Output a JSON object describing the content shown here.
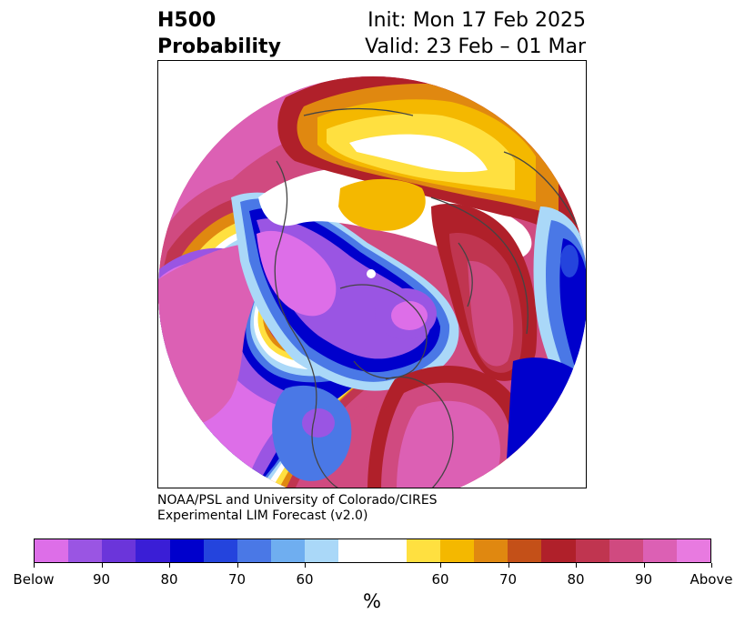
{
  "header": {
    "title_line1": "H500",
    "title_line2": "Probability",
    "init": "Init: Mon 17 Feb 2025",
    "valid": "Valid: 23 Feb – 01 Mar"
  },
  "credit": {
    "line1": "NOAA/PSL and University of Colorado/CIRES",
    "line2": "Experimental LIM Forecast (v2.0)"
  },
  "colorbar": {
    "colors": [
      "#dd6ee8",
      "#9a55e3",
      "#6b35da",
      "#3a1ed6",
      "#0000cc",
      "#2444dd",
      "#4a78e6",
      "#6faef0",
      "#aad8f8",
      "#ffffff",
      "#ffffff",
      "#ffe040",
      "#f4b800",
      "#e08810",
      "#c45018",
      "#b0202a",
      "#c03550",
      "#d04a80",
      "#dc60b4",
      "#e87ae0"
    ],
    "labels": [
      "Below",
      "90",
      "80",
      "70",
      "60",
      "60",
      "70",
      "80",
      "90",
      "Above"
    ],
    "unit": "%"
  },
  "map": {
    "colors": {
      "below_strong": "#dd6ee8",
      "below_purple": "#9a55e3",
      "below_blue": "#0000cc",
      "below_mid": "#4a78e6",
      "below_light": "#aad8f8",
      "neutral": "#ffffff",
      "above_yellow": "#ffe040",
      "above_gold": "#f4b800",
      "above_orange": "#e08810",
      "above_red": "#b0202a",
      "above_pink": "#d04a80",
      "above_strong": "#dc60b4"
    }
  }
}
